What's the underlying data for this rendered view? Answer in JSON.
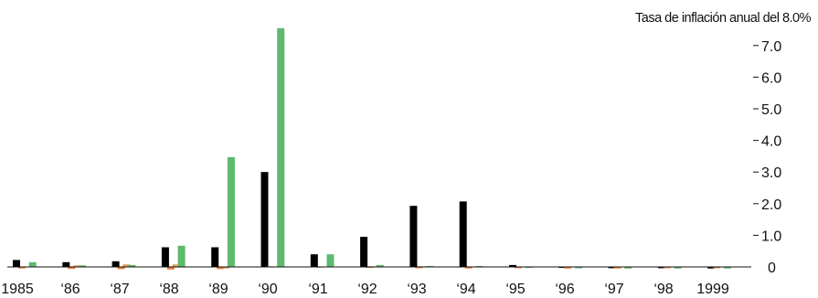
{
  "chart_data": {
    "type": "bar",
    "title": "Tasa de inflación anual del 8.0%",
    "categories": [
      "1985",
      "‘86",
      "‘87",
      "‘88",
      "‘89",
      "‘90",
      "‘91",
      "‘92",
      "‘93",
      "‘94",
      "‘95",
      "‘96",
      "‘97",
      "‘98",
      "1999"
    ],
    "y_ticks": [
      "0",
      "1.0",
      "2.0",
      "3.0",
      "4.0",
      "5.0",
      "6.0",
      "7.0"
    ],
    "ylim": [
      0,
      8
    ],
    "legend": "none",
    "grid": false,
    "series": [
      {
        "color": "#000000",
        "values": [
          0.22,
          0.15,
          0.18,
          0.62,
          0.62,
          3.0,
          0.4,
          0.95,
          1.93,
          2.07,
          0.06,
          -0.03,
          -0.04,
          -0.04,
          -0.05
        ]
      },
      {
        "color": "#f07c3a",
        "values": [
          -0.05,
          -0.06,
          -0.07,
          -0.08,
          -0.07,
          0.02,
          0.0,
          -0.03,
          -0.04,
          -0.05,
          -0.04,
          -0.05,
          -0.05,
          -0.04,
          -0.04
        ]
      },
      {
        "color": "#e0a15a",
        "values": [
          0.01,
          0.05,
          0.08,
          0.08,
          -0.05,
          0.01,
          0.01,
          0.02,
          0.02,
          0.01,
          0.01,
          0.01,
          0.01,
          0.01,
          0.01
        ]
      },
      {
        "color": "#5dba6f",
        "values": [
          0.15,
          0.05,
          0.06,
          0.67,
          3.47,
          7.55,
          0.4,
          0.06,
          0.03,
          0.03,
          -0.03,
          -0.04,
          -0.05,
          -0.05,
          -0.05
        ]
      }
    ]
  }
}
